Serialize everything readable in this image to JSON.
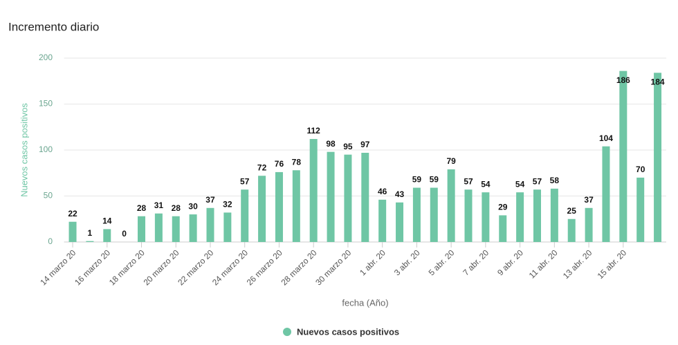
{
  "chart_data": {
    "type": "bar",
    "title": "Incremento diario",
    "ylabel": "Nuevos casos positivos",
    "xlabel": "fecha (Año)",
    "categories": [
      "14 marzo 20",
      null,
      "16 marzo 20",
      null,
      "18 marzo 20",
      null,
      "20 marzo 20",
      null,
      "22 marzo 20",
      null,
      "24 marzo 20",
      null,
      "26 marzo 20",
      null,
      "28 marzo 20",
      null,
      "30 marzo 20",
      null,
      "1 abr. 20",
      null,
      "3 abr. 20",
      null,
      "5 abr. 20",
      null,
      "7 abr. 20",
      null,
      "9 abr. 20",
      null,
      "11 abr. 20",
      null,
      "13 abr. 20",
      null,
      "15 abr. 20",
      null,
      null
    ],
    "series": [
      {
        "name": "Nuevos casos positivos",
        "color": "#6fc6a5",
        "values": [
          22,
          1,
          14,
          0,
          28,
          31,
          28,
          30,
          37,
          32,
          57,
          72,
          76,
          78,
          112,
          98,
          95,
          97,
          46,
          43,
          59,
          59,
          79,
          57,
          54,
          29,
          54,
          57,
          58,
          25,
          37,
          104,
          186,
          70,
          184
        ]
      }
    ],
    "ylim": [
      0,
      200
    ],
    "yticks": [
      0,
      50,
      100,
      150,
      200
    ],
    "grid": true,
    "legend": "bottom"
  }
}
